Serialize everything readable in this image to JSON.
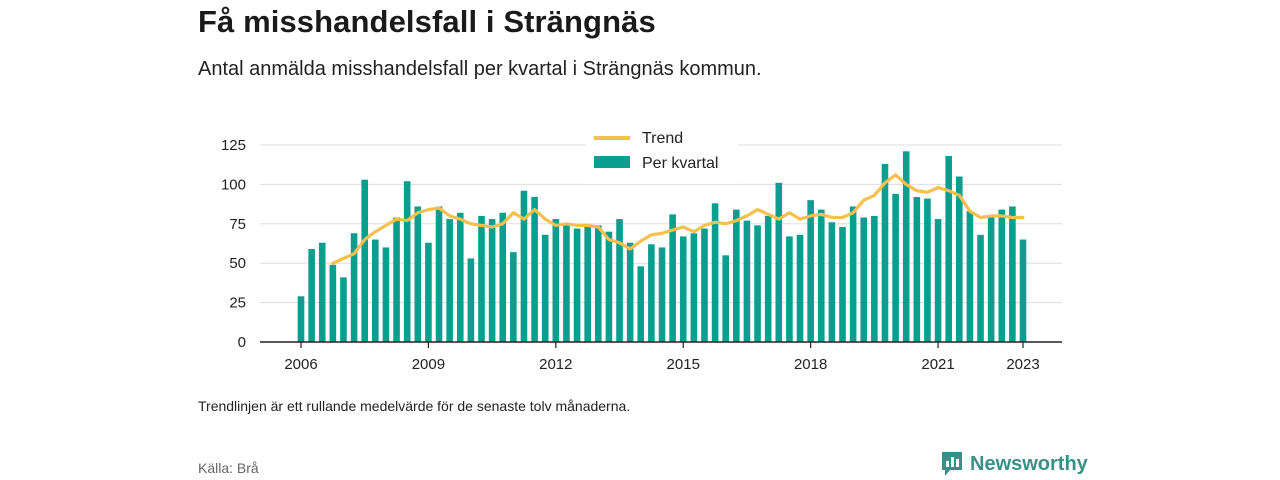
{
  "title": "Få misshandelsfall i Strängnäs",
  "subtitle": "Antal anmälda misshandelsfall per kvartal i Strängnäs kommun.",
  "note": "Trendlinjen är ett rullande medelvärde för de senaste tolv månaderna.",
  "source": "Källa: Brå",
  "brand": "Newsworthy",
  "colors": {
    "bar": "#0a9e8f",
    "trend": "#f5c04e",
    "grid": "#dddddd",
    "axis": "#222222",
    "brand": "#3a8f86"
  },
  "chart_data": {
    "type": "bar",
    "x_start": "2006 Q1",
    "quarters_per_year": 4,
    "ylim": [
      0,
      125
    ],
    "yticks": [
      0,
      25,
      50,
      75,
      100,
      125
    ],
    "xticks": [
      "2006",
      "2009",
      "2012",
      "2015",
      "2018",
      "2021",
      "2023"
    ],
    "legend": {
      "position": "top-center",
      "trend_label": "Trend",
      "bar_label": "Per kvartal"
    },
    "series": [
      {
        "name": "Per kvartal",
        "type": "bar",
        "values": [
          29,
          59,
          63,
          49,
          41,
          69,
          103,
          65,
          60,
          79,
          102,
          86,
          63,
          86,
          78,
          82,
          53,
          80,
          78,
          82,
          57,
          96,
          92,
          68,
          78,
          74,
          72,
          73,
          74,
          70,
          78,
          63,
          48,
          62,
          60,
          81,
          67,
          69,
          72,
          88,
          55,
          84,
          77,
          74,
          80,
          101,
          67,
          68,
          90,
          84,
          76,
          73,
          86,
          79,
          80,
          113,
          94,
          121,
          92,
          91,
          78,
          118,
          105,
          83,
          68,
          80,
          84,
          86,
          65
        ]
      },
      {
        "name": "Trend",
        "type": "line",
        "start_index": 3,
        "values": [
          50,
          53,
          56,
          65,
          70,
          74,
          78,
          77,
          82,
          84,
          85,
          80,
          78,
          75,
          74,
          73,
          75,
          82,
          78,
          84,
          78,
          74,
          75,
          74,
          74,
          73,
          65,
          63,
          59,
          64,
          68,
          69,
          71,
          73,
          70,
          74,
          76,
          75,
          77,
          80,
          84,
          81,
          78,
          82,
          78,
          80,
          81,
          79,
          79,
          82,
          90,
          93,
          101,
          106,
          100,
          96,
          95,
          98,
          96,
          93,
          83,
          79,
          80,
          80,
          79,
          79
        ]
      }
    ]
  }
}
